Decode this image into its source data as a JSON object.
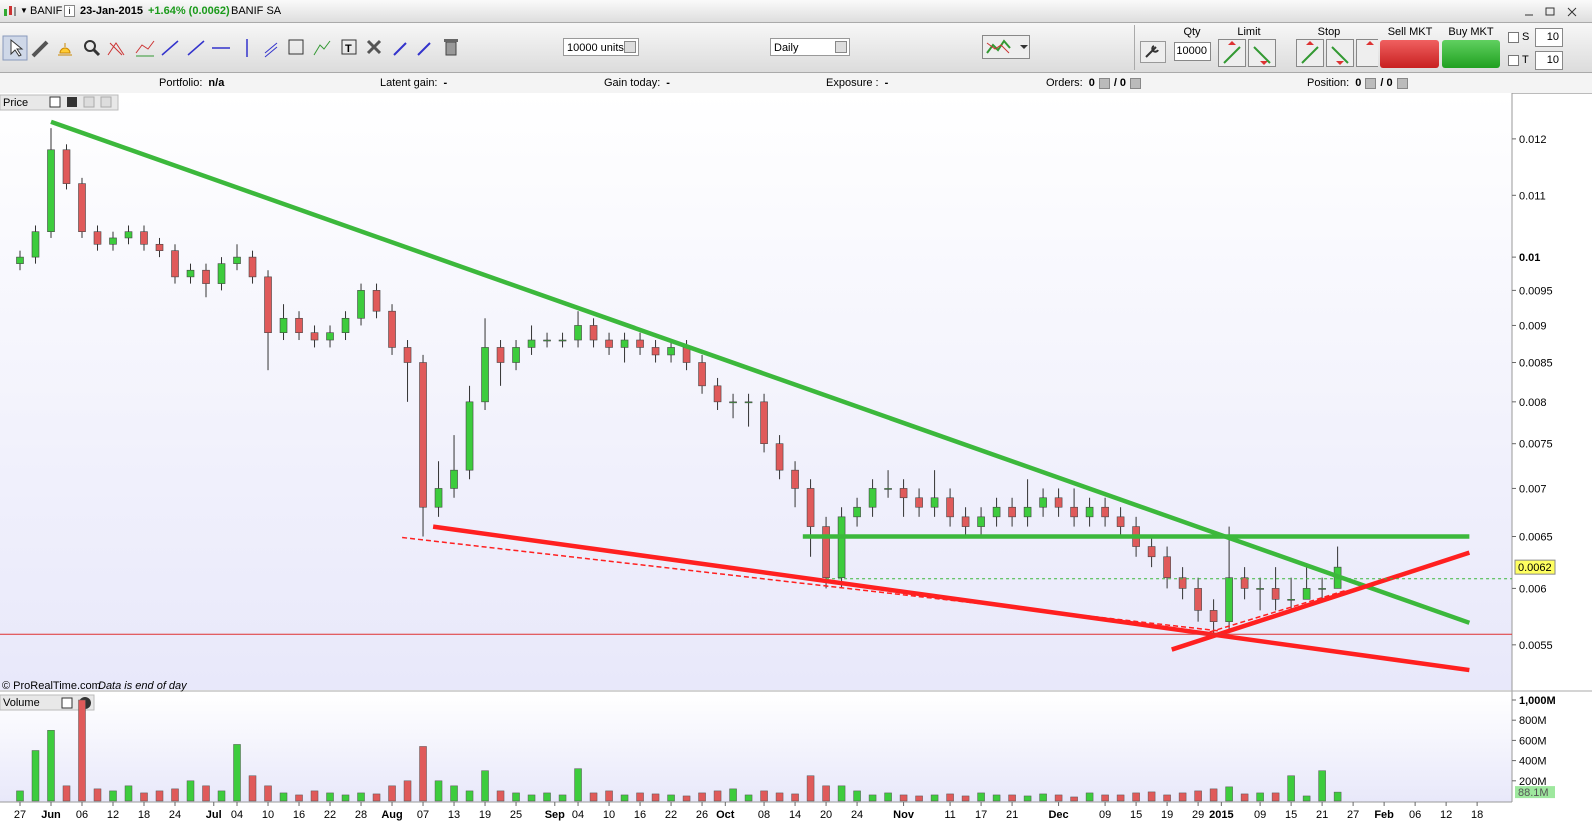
{
  "header": {
    "symbol": "BANIF",
    "date": "23-Jan-2015",
    "change": "+1.64% (0.0062)",
    "name": "BANIF SA"
  },
  "toolbar": {
    "units": "10000 units",
    "period": "Daily"
  },
  "order_panel": {
    "qty_label": "Qty",
    "qty": "10000",
    "limit_label": "Limit",
    "stop_label": "Stop",
    "sell_label": "Sell MKT",
    "buy_label": "Buy MKT",
    "s_label": "S",
    "s_value": "10",
    "t_label": "T",
    "t_value": "10"
  },
  "info_bar": [
    {
      "label": "Portfolio:",
      "value": "n/a"
    },
    {
      "label": "Latent gain:",
      "value": "-"
    },
    {
      "label": "Gain today:",
      "value": "-"
    },
    {
      "label": "Exposure :",
      "value": "-"
    },
    {
      "label": "Orders:",
      "value": "0",
      "value2": "/ 0"
    },
    {
      "label": "Position:",
      "value": "0",
      "value2": "/ 0"
    }
  ],
  "chart_data": [
    {
      "type": "candlestick",
      "panel_label": "Price",
      "footer": "© ProRealTime.com",
      "footer_note": "Data is end of day",
      "log_scale": true,
      "up_color": "#3dcc3d",
      "down_color": "#e05a5a",
      "x": [
        0,
        2,
        4,
        6,
        8,
        10,
        12,
        14,
        16,
        18,
        20,
        22,
        24,
        26,
        28,
        30,
        32,
        34,
        36,
        38,
        40,
        42,
        44,
        46,
        48,
        50,
        52,
        54,
        56,
        58,
        60,
        62,
        64,
        66,
        68,
        70,
        72,
        74,
        76,
        78,
        80,
        82,
        84,
        86,
        88,
        90,
        92,
        94,
        96,
        98,
        100,
        102,
        104,
        106,
        108,
        110,
        112,
        114,
        116,
        118,
        120,
        122,
        124,
        126,
        128,
        130,
        132,
        134,
        136,
        138,
        140,
        142,
        144,
        146,
        148,
        150,
        152,
        154,
        156,
        158,
        160,
        162,
        164,
        166,
        168,
        170
      ],
      "open": [
        0.0099,
        0.01,
        0.0104,
        0.0118,
        0.0112,
        0.0104,
        0.0102,
        0.0103,
        0.0104,
        0.0102,
        0.0101,
        0.0097,
        0.0098,
        0.0096,
        0.0099,
        0.01,
        0.0097,
        0.0089,
        0.0091,
        0.0089,
        0.0088,
        0.0089,
        0.0091,
        0.0095,
        0.0092,
        0.0087,
        0.0085,
        0.0068,
        0.007,
        0.0072,
        0.008,
        0.0087,
        0.0085,
        0.0087,
        0.0088,
        0.0088,
        0.0088,
        0.009,
        0.0088,
        0.0087,
        0.0088,
        0.0087,
        0.0086,
        0.0087,
        0.0085,
        0.0082,
        0.008,
        0.008,
        0.008,
        0.0075,
        0.0072,
        0.007,
        0.0066,
        0.0061,
        0.0067,
        0.0068,
        0.007,
        0.007,
        0.0069,
        0.0068,
        0.0069,
        0.0067,
        0.0066,
        0.0067,
        0.0068,
        0.0067,
        0.0068,
        0.0069,
        0.0068,
        0.0067,
        0.0068,
        0.0067,
        0.0066,
        0.0064,
        0.0063,
        0.0061,
        0.006,
        0.0058,
        0.0057,
        0.0061,
        0.006,
        0.006,
        0.0059,
        0.0059,
        0.006,
        0.006
      ],
      "high": [
        0.0101,
        0.0105,
        0.0122,
        0.0119,
        0.0113,
        0.0105,
        0.0104,
        0.0105,
        0.0105,
        0.0103,
        0.0102,
        0.0099,
        0.0099,
        0.01,
        0.0102,
        0.0101,
        0.0098,
        0.0093,
        0.0092,
        0.009,
        0.009,
        0.0092,
        0.0096,
        0.0096,
        0.0093,
        0.0088,
        0.0086,
        0.0073,
        0.0076,
        0.0082,
        0.0091,
        0.0088,
        0.0088,
        0.009,
        0.0089,
        0.0089,
        0.0092,
        0.0091,
        0.0089,
        0.0089,
        0.0089,
        0.0088,
        0.0088,
        0.0088,
        0.0086,
        0.0083,
        0.0081,
        0.0081,
        0.0081,
        0.0076,
        0.0073,
        0.0071,
        0.0067,
        0.0068,
        0.0069,
        0.0071,
        0.0072,
        0.0071,
        0.007,
        0.0072,
        0.007,
        0.0068,
        0.0068,
        0.0069,
        0.0069,
        0.0071,
        0.007,
        0.007,
        0.007,
        0.0069,
        0.0069,
        0.0068,
        0.0067,
        0.0065,
        0.0064,
        0.0062,
        0.0061,
        0.0059,
        0.0066,
        0.0062,
        0.0061,
        0.0062,
        0.0061,
        0.0062,
        0.0061,
        0.0064
      ],
      "low": [
        0.0098,
        0.0099,
        0.0103,
        0.0111,
        0.0103,
        0.0101,
        0.0101,
        0.0102,
        0.0101,
        0.01,
        0.0096,
        0.0096,
        0.0094,
        0.0095,
        0.0098,
        0.0096,
        0.0084,
        0.0088,
        0.0088,
        0.0087,
        0.0087,
        0.0088,
        0.009,
        0.0091,
        0.0086,
        0.008,
        0.0065,
        0.0067,
        0.0069,
        0.0071,
        0.0079,
        0.0082,
        0.0084,
        0.0086,
        0.0087,
        0.0087,
        0.0087,
        0.0087,
        0.0086,
        0.0085,
        0.0086,
        0.0085,
        0.0085,
        0.0084,
        0.0081,
        0.0079,
        0.0078,
        0.0077,
        0.0074,
        0.0071,
        0.0068,
        0.0063,
        0.006,
        0.006,
        0.0066,
        0.0067,
        0.0069,
        0.0067,
        0.0067,
        0.0067,
        0.0066,
        0.0065,
        0.0065,
        0.0066,
        0.0066,
        0.0066,
        0.0067,
        0.0067,
        0.0066,
        0.0066,
        0.0066,
        0.0065,
        0.0063,
        0.0062,
        0.006,
        0.0059,
        0.0057,
        0.0056,
        0.0056,
        0.0059,
        0.0058,
        0.0058,
        0.0058,
        0.0059,
        0.0059,
        0.006
      ],
      "close": [
        0.01,
        0.0104,
        0.0118,
        0.0112,
        0.0104,
        0.0102,
        0.0103,
        0.0104,
        0.0102,
        0.0101,
        0.0097,
        0.0098,
        0.0096,
        0.0099,
        0.01,
        0.0097,
        0.0089,
        0.0091,
        0.0089,
        0.0088,
        0.0089,
        0.0091,
        0.0095,
        0.0092,
        0.0087,
        0.0085,
        0.0068,
        0.007,
        0.0072,
        0.008,
        0.0087,
        0.0085,
        0.0087,
        0.0088,
        0.0088,
        0.0088,
        0.009,
        0.0088,
        0.0087,
        0.0088,
        0.0087,
        0.0086,
        0.0087,
        0.0085,
        0.0082,
        0.008,
        0.008,
        0.008,
        0.0075,
        0.0072,
        0.007,
        0.0066,
        0.0061,
        0.0067,
        0.0068,
        0.007,
        0.007,
        0.0069,
        0.0068,
        0.0069,
        0.0067,
        0.0066,
        0.0067,
        0.0068,
        0.0067,
        0.0068,
        0.0069,
        0.0068,
        0.0067,
        0.0068,
        0.0067,
        0.0066,
        0.0064,
        0.0063,
        0.0061,
        0.006,
        0.0058,
        0.0057,
        0.0061,
        0.006,
        0.006,
        0.0059,
        0.0059,
        0.006,
        0.006,
        0.0062
      ],
      "last_price": 0.0062,
      "xlim": [
        -2.58,
        192.5
      ],
      "ylim": [
        0.00513,
        0.01284
      ],
      "yticks": [
        0.012,
        0.011,
        0.01,
        0.0095,
        0.009,
        0.0085,
        0.008,
        0.0075,
        0.007,
        0.0065,
        0.006,
        0.0055
      ],
      "trendlines": [
        {
          "color": "#3cb83c",
          "style": "thick",
          "x": [
            4,
            187
          ],
          "y": [
            0.01232,
            0.00569
          ]
        },
        {
          "color": "#3cb83c",
          "style": "thick",
          "x": [
            101,
            187
          ],
          "y": [
            0.0065,
            0.0065
          ]
        },
        {
          "color": "#ff2020",
          "style": "thick",
          "x": [
            53.3,
            187
          ],
          "y": [
            0.0066,
            0.00529
          ]
        },
        {
          "color": "#ff2020",
          "style": "thick",
          "x": [
            148.6,
            187
          ],
          "y": [
            0.00546,
            0.00634
          ]
        },
        {
          "color": "#ff2020",
          "style": "dashed",
          "x": [
            49.3,
            154.6
          ],
          "y": [
            0.00649,
            0.00562
          ]
        },
        {
          "color": "#ff2020",
          "style": "dashed",
          "x": [
            153.5,
            171
          ],
          "y": [
            0.00561,
            0.00598
          ]
        },
        {
          "color": "#e03030",
          "style": "thin",
          "x": [
            -2.58,
            192.5
          ],
          "y": [
            0.00559,
            0.00559
          ]
        },
        {
          "color": "#3cb83c",
          "style": "dotted",
          "x": [
            104,
            192.5
          ],
          "y": [
            0.00609,
            0.00609
          ]
        }
      ]
    },
    {
      "type": "volume",
      "panel_label": "Volume",
      "color_up": "#3dcc3d",
      "color_down": "#e05a5a",
      "x": [
        0,
        2,
        4,
        6,
        8,
        10,
        12,
        14,
        16,
        18,
        20,
        22,
        24,
        26,
        28,
        30,
        32,
        34,
        36,
        38,
        40,
        42,
        44,
        46,
        48,
        50,
        52,
        54,
        56,
        58,
        60,
        62,
        64,
        66,
        68,
        70,
        72,
        74,
        76,
        78,
        80,
        82,
        84,
        86,
        88,
        90,
        92,
        94,
        96,
        98,
        100,
        102,
        104,
        106,
        108,
        110,
        112,
        114,
        116,
        118,
        120,
        122,
        124,
        126,
        128,
        130,
        132,
        134,
        136,
        138,
        140,
        142,
        144,
        146,
        148,
        150,
        152,
        154,
        156,
        158,
        160,
        162,
        164,
        166,
        168,
        170
      ],
      "values": [
        100,
        500,
        700,
        150,
        1000,
        120,
        100,
        150,
        80,
        100,
        120,
        200,
        150,
        100,
        560,
        250,
        150,
        80,
        60,
        100,
        80,
        60,
        80,
        70,
        150,
        200,
        540,
        200,
        150,
        100,
        300,
        100,
        80,
        60,
        80,
        60,
        320,
        80,
        100,
        60,
        80,
        70,
        60,
        50,
        80,
        100,
        120,
        60,
        100,
        80,
        70,
        250,
        150,
        150,
        100,
        60,
        80,
        60,
        50,
        60,
        70,
        50,
        80,
        60,
        60,
        50,
        70,
        60,
        40,
        80,
        60,
        60,
        80,
        90,
        60,
        80,
        100,
        120,
        140,
        70,
        80,
        80,
        250,
        50,
        300,
        88.1
      ],
      "value_labels": [
        null,
        null,
        null,
        null,
        null,
        null,
        null,
        null,
        null,
        null,
        null,
        null,
        null,
        null,
        null,
        null,
        null,
        null,
        null,
        null,
        null,
        null,
        null,
        null,
        null,
        null,
        null,
        null,
        null,
        null,
        null,
        null,
        null,
        null,
        null,
        null,
        null,
        null,
        null,
        null,
        null,
        null,
        null,
        null,
        null,
        null,
        null,
        null,
        null,
        null,
        null,
        null,
        null,
        null,
        null,
        null,
        null,
        null,
        null,
        null,
        null,
        null,
        null,
        null,
        null,
        null,
        null,
        null,
        null,
        null,
        null,
        null,
        null,
        null,
        null,
        null,
        null,
        null,
        null,
        null,
        null,
        null,
        null,
        null,
        null,
        "88.1M"
      ],
      "xlim": [
        -2.58,
        192.5
      ],
      "ylim": [
        0,
        1000
      ],
      "yticks": [
        {
          "value": 1000,
          "label": "1,000M"
        },
        {
          "value": 800,
          "label": "800M"
        },
        {
          "value": 600,
          "label": "600M"
        },
        {
          "value": 400,
          "label": "400M"
        },
        {
          "value": 200,
          "label": "200M"
        }
      ],
      "xticks": [
        {
          "value": 0,
          "label": "27"
        },
        {
          "value": 4,
          "label": "Jun"
        },
        {
          "value": 8,
          "label": "06"
        },
        {
          "value": 12,
          "label": "12"
        },
        {
          "value": 16,
          "label": "18"
        },
        {
          "value": 20,
          "label": "24"
        },
        {
          "value": 25,
          "label": "Jul"
        },
        {
          "value": 28,
          "label": "04"
        },
        {
          "value": 32,
          "label": "10"
        },
        {
          "value": 36,
          "label": "16"
        },
        {
          "value": 40,
          "label": "22"
        },
        {
          "value": 44,
          "label": "28"
        },
        {
          "value": 48,
          "label": "Aug"
        },
        {
          "value": 52,
          "label": "07"
        },
        {
          "value": 56,
          "label": "13"
        },
        {
          "value": 60,
          "label": "19"
        },
        {
          "value": 64,
          "label": "25"
        },
        {
          "value": 69,
          "label": "Sep"
        },
        {
          "value": 72,
          "label": "04"
        },
        {
          "value": 76,
          "label": "10"
        },
        {
          "value": 80,
          "label": "16"
        },
        {
          "value": 84,
          "label": "22"
        },
        {
          "value": 88,
          "label": "26"
        },
        {
          "value": 91,
          "label": "Oct"
        },
        {
          "value": 96,
          "label": "08"
        },
        {
          "value": 100,
          "label": "14"
        },
        {
          "value": 104,
          "label": "20"
        },
        {
          "value": 108,
          "label": "24"
        },
        {
          "value": 114,
          "label": "Nov"
        },
        {
          "value": 120,
          "label": "11"
        },
        {
          "value": 124,
          "label": "17"
        },
        {
          "value": 128,
          "label": "21"
        },
        {
          "value": 134,
          "label": "Dec"
        },
        {
          "value": 140,
          "label": "09"
        },
        {
          "value": 144,
          "label": "15"
        },
        {
          "value": 148,
          "label": "19"
        },
        {
          "value": 152,
          "label": "29"
        },
        {
          "value": 155,
          "label": "2015"
        },
        {
          "value": 160,
          "label": "09"
        },
        {
          "value": 164,
          "label": "15"
        },
        {
          "value": 168,
          "label": "21"
        },
        {
          "value": 172,
          "label": "27"
        },
        {
          "value": 176,
          "label": "Feb"
        },
        {
          "value": 180,
          "label": "06"
        },
        {
          "value": 184,
          "label": "12"
        },
        {
          "value": 188,
          "label": "18"
        }
      ]
    }
  ]
}
